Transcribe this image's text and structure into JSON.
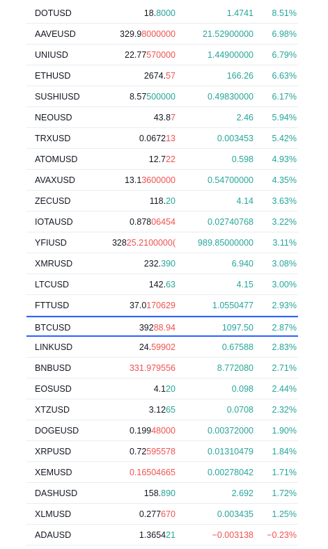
{
  "watchlist": {
    "rows": [
      {
        "symbol": "DOTUSD",
        "price_main": "18.",
        "price_tail": "8000",
        "tail_dir": "up",
        "change": "1.4741",
        "change_dir": "up",
        "percent": "8.51%",
        "percent_dir": "up"
      },
      {
        "symbol": "AAVEUSD",
        "price_main": "329.9",
        "price_tail": "8000000",
        "tail_dir": "down",
        "change": "21.52900000",
        "change_dir": "up",
        "percent": "6.98%",
        "percent_dir": "up"
      },
      {
        "symbol": "UNIUSD",
        "price_main": "22.77",
        "price_tail": "570000",
        "tail_dir": "down",
        "change": "1.44900000",
        "change_dir": "up",
        "percent": "6.79%",
        "percent_dir": "up"
      },
      {
        "symbol": "ETHUSD",
        "price_main": "2674.",
        "price_tail": "57",
        "tail_dir": "down",
        "change": "166.26",
        "change_dir": "up",
        "percent": "6.63%",
        "percent_dir": "up"
      },
      {
        "symbol": "SUSHIUSD",
        "price_main": "8.57",
        "price_tail": "500000",
        "tail_dir": "up",
        "change": "0.49830000",
        "change_dir": "up",
        "percent": "6.17%",
        "percent_dir": "up"
      },
      {
        "symbol": "NEOUSD",
        "price_main": "43.8",
        "price_tail": "7",
        "tail_dir": "down",
        "change": "2.46",
        "change_dir": "up",
        "percent": "5.94%",
        "percent_dir": "up"
      },
      {
        "symbol": "TRXUSD",
        "price_main": "0.0672",
        "price_tail": "13",
        "tail_dir": "down",
        "change": "0.003453",
        "change_dir": "up",
        "percent": "5.42%",
        "percent_dir": "up"
      },
      {
        "symbol": "ATOMUSD",
        "price_main": "12.7",
        "price_tail": "22",
        "tail_dir": "down",
        "change": "0.598",
        "change_dir": "up",
        "percent": "4.93%",
        "percent_dir": "up"
      },
      {
        "symbol": "AVAXUSD",
        "price_main": "13.1",
        "price_tail": "3600000",
        "tail_dir": "down",
        "change": "0.54700000",
        "change_dir": "up",
        "percent": "4.35%",
        "percent_dir": "up"
      },
      {
        "symbol": "ZECUSD",
        "price_main": "118.",
        "price_tail": "20",
        "tail_dir": "up",
        "change": "4.14",
        "change_dir": "up",
        "percent": "3.63%",
        "percent_dir": "up"
      },
      {
        "symbol": "IOTAUSD",
        "price_main": "0.878",
        "price_tail": "06454",
        "tail_dir": "down",
        "change": "0.02740768",
        "change_dir": "up",
        "percent": "3.22%",
        "percent_dir": "up"
      },
      {
        "symbol": "YFIUSD",
        "price_main": "328",
        "price_tail": "25.2100000(",
        "tail_dir": "down",
        "change": "989.85000000",
        "change_dir": "up",
        "percent": "3.11%",
        "percent_dir": "up"
      },
      {
        "symbol": "XMRUSD",
        "price_main": "232.",
        "price_tail": "390",
        "tail_dir": "up",
        "change": "6.940",
        "change_dir": "up",
        "percent": "3.08%",
        "percent_dir": "up"
      },
      {
        "symbol": "LTCUSD",
        "price_main": "142.",
        "price_tail": "63",
        "tail_dir": "up",
        "change": "4.15",
        "change_dir": "up",
        "percent": "3.00%",
        "percent_dir": "up"
      },
      {
        "symbol": "FTTUSD",
        "price_main": "37.0",
        "price_tail": "170629",
        "tail_dir": "down",
        "change": "1.0550477",
        "change_dir": "up",
        "percent": "2.93%",
        "percent_dir": "up"
      },
      {
        "symbol": "BTCUSD",
        "price_main": "392",
        "price_tail": "88.94",
        "tail_dir": "down",
        "change": "1097.50",
        "change_dir": "up",
        "percent": "2.87%",
        "percent_dir": "up",
        "selected": true
      },
      {
        "symbol": "LINKUSD",
        "price_main": "24.",
        "price_tail": "59902",
        "tail_dir": "down",
        "change": "0.67588",
        "change_dir": "up",
        "percent": "2.83%",
        "percent_dir": "up"
      },
      {
        "symbol": "BNBUSD",
        "price_main": "",
        "price_tail": "331.979556",
        "tail_dir": "down",
        "change": "8.772080",
        "change_dir": "up",
        "percent": "2.71%",
        "percent_dir": "up"
      },
      {
        "symbol": "EOSUSD",
        "price_main": "4.1",
        "price_tail": "20",
        "tail_dir": "up",
        "change": "0.098",
        "change_dir": "up",
        "percent": "2.44%",
        "percent_dir": "up"
      },
      {
        "symbol": "XTZUSD",
        "price_main": "3.12",
        "price_tail": "65",
        "tail_dir": "up",
        "change": "0.0708",
        "change_dir": "up",
        "percent": "2.32%",
        "percent_dir": "up"
      },
      {
        "symbol": "DOGEUSD",
        "price_main": "0.199",
        "price_tail": "48000",
        "tail_dir": "down",
        "change": "0.00372000",
        "change_dir": "up",
        "percent": "1.90%",
        "percent_dir": "up"
      },
      {
        "symbol": "XRPUSD",
        "price_main": "0.72",
        "price_tail": "595578",
        "tail_dir": "down",
        "change": "0.01310479",
        "change_dir": "up",
        "percent": "1.84%",
        "percent_dir": "up"
      },
      {
        "symbol": "XEMUSD",
        "price_main": "",
        "price_tail": "0.16504665",
        "tail_dir": "down",
        "change": "0.00278042",
        "change_dir": "up",
        "percent": "1.71%",
        "percent_dir": "up"
      },
      {
        "symbol": "DASHUSD",
        "price_main": "158.",
        "price_tail": "890",
        "tail_dir": "up",
        "change": "2.692",
        "change_dir": "up",
        "percent": "1.72%",
        "percent_dir": "up"
      },
      {
        "symbol": "XLMUSD",
        "price_main": "0.277",
        "price_tail": "670",
        "tail_dir": "down",
        "change": "0.003435",
        "change_dir": "up",
        "percent": "1.25%",
        "percent_dir": "up"
      },
      {
        "symbol": "ADAUSD",
        "price_main": "1.3654",
        "price_tail": "21",
        "tail_dir": "up",
        "change": "−0.003138",
        "change_dir": "down",
        "percent": "−0.23%",
        "percent_dir": "down"
      }
    ]
  },
  "colors": {
    "up": "#26a69a",
    "down": "#ef5350",
    "text": "#131722",
    "selection": "#2962ff"
  }
}
